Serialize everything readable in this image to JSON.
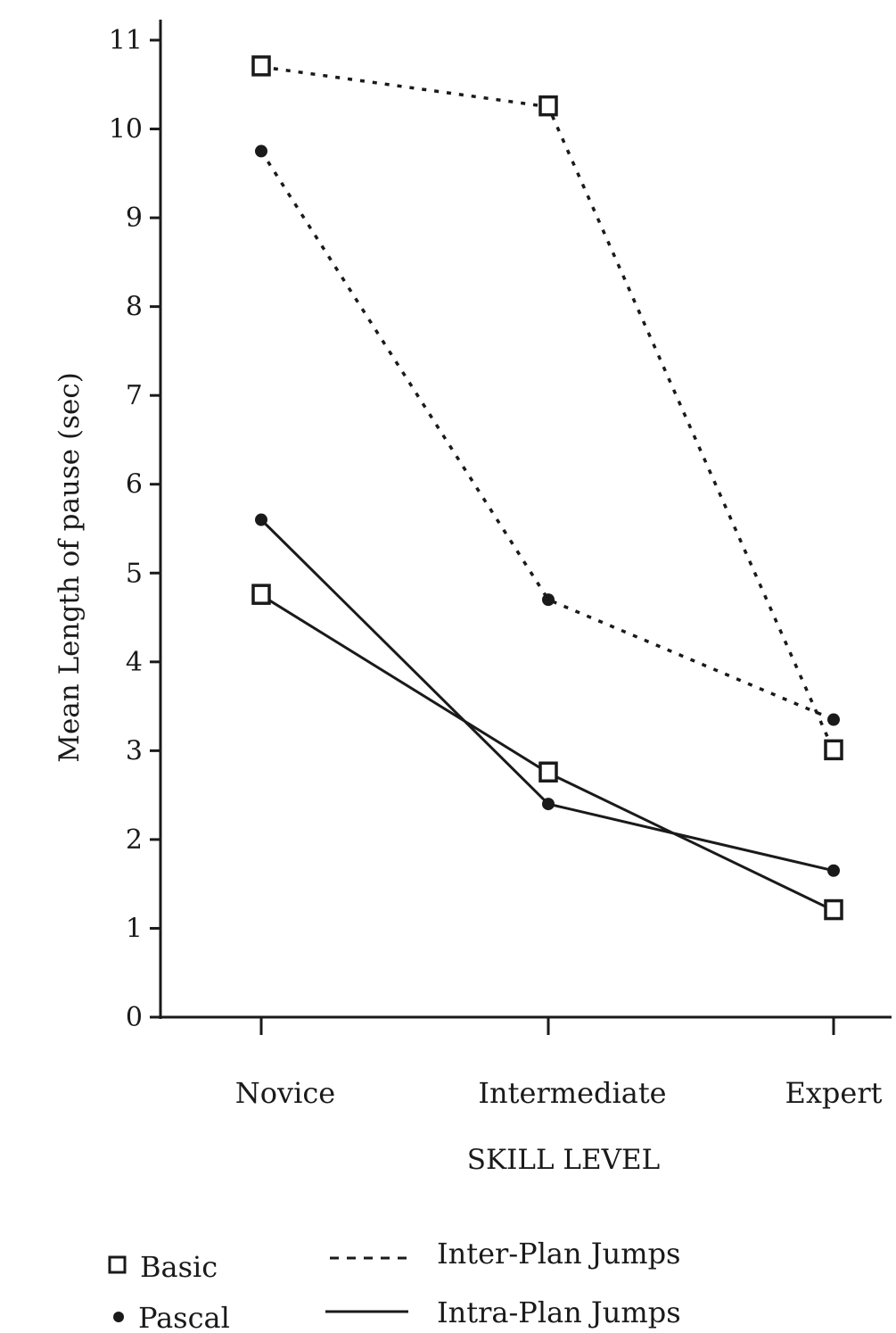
{
  "chart_data": {
    "type": "line",
    "xlabel": "SKILL LEVEL",
    "ylabel": "Mean Length of pause (sec)",
    "categories": [
      "Novice",
      "Intermediate",
      "Expert"
    ],
    "ylim": [
      0,
      11
    ],
    "yticks": [
      "0",
      "1",
      "2",
      "3",
      "4",
      "5",
      "6",
      "7",
      "8",
      "9",
      "10",
      "11"
    ],
    "grid": false,
    "legend_markers": [
      {
        "label": "Basic",
        "marker": "open-square"
      },
      {
        "label": "Pascal",
        "marker": "filled-circle"
      }
    ],
    "legend_lines": [
      {
        "label": "Inter-Plan Jumps",
        "style": "dashed"
      },
      {
        "label": "Intra-Plan Jumps",
        "style": "solid"
      }
    ],
    "series": [
      {
        "language": "Basic",
        "jump": "Inter-Plan Jumps",
        "marker": "open-square",
        "style": "dashed",
        "values": [
          10.7,
          10.25,
          3.0
        ]
      },
      {
        "language": "Pascal",
        "jump": "Inter-Plan Jumps",
        "marker": "filled-circle",
        "style": "dashed",
        "values": [
          9.75,
          4.7,
          3.35
        ]
      },
      {
        "language": "Pascal",
        "jump": "Intra-Plan Jumps",
        "marker": "filled-circle",
        "style": "solid",
        "values": [
          5.6,
          2.4,
          1.65
        ]
      },
      {
        "language": "Basic",
        "jump": "Intra-Plan Jumps",
        "marker": "open-square",
        "style": "solid",
        "values": [
          4.75,
          2.75,
          1.2
        ]
      }
    ],
    "colors": {
      "ink": "#1a1a1a",
      "background": "#ffffff"
    }
  }
}
